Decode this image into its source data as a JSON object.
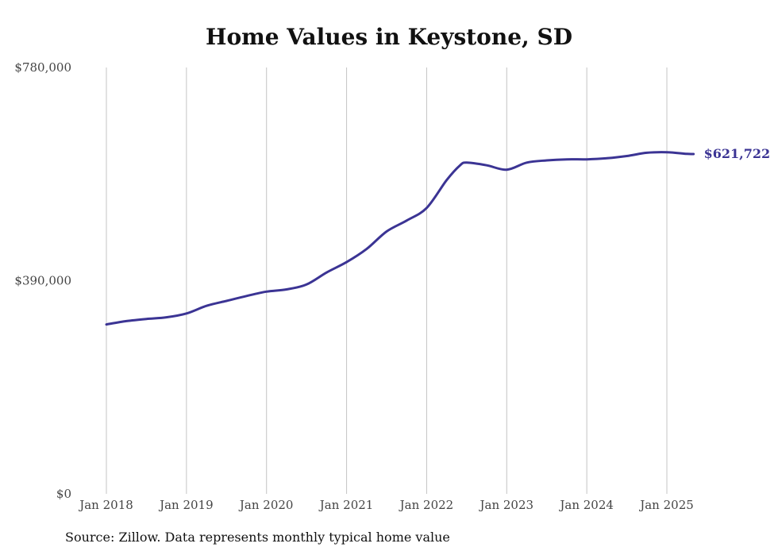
{
  "chart_data": {
    "type": "line",
    "title": "Home Values in Keystone, SD",
    "xlabel": "",
    "ylabel": "",
    "ylim": [
      0,
      780000
    ],
    "y_ticks": [
      0,
      390000,
      780000
    ],
    "y_tick_labels": [
      "$0",
      "$390,000",
      "$780,000"
    ],
    "x_ticks": [
      "2018-01",
      "2019-01",
      "2020-01",
      "2021-01",
      "2022-01",
      "2023-01",
      "2024-01",
      "2025-01"
    ],
    "x_tick_labels": [
      "Jan 2018",
      "Jan 2019",
      "Jan 2020",
      "Jan 2021",
      "Jan 2022",
      "Jan 2023",
      "Jan 2024",
      "Jan 2025"
    ],
    "grid": "vertical",
    "line_color": "#3b3494",
    "end_label": "$621,722",
    "series": [
      {
        "name": "",
        "points": [
          [
            "2018-01",
            310000
          ],
          [
            "2018-04",
            316000
          ],
          [
            "2018-07",
            320000
          ],
          [
            "2018-10",
            323000
          ],
          [
            "2019-01",
            330000
          ],
          [
            "2019-04",
            344000
          ],
          [
            "2019-07",
            353000
          ],
          [
            "2019-10",
            362000
          ],
          [
            "2020-01",
            370000
          ],
          [
            "2020-04",
            374000
          ],
          [
            "2020-07",
            383000
          ],
          [
            "2020-10",
            405000
          ],
          [
            "2021-01",
            424000
          ],
          [
            "2021-04",
            448000
          ],
          [
            "2021-07",
            480000
          ],
          [
            "2021-10",
            500000
          ],
          [
            "2022-01",
            523000
          ],
          [
            "2022-04",
            574000
          ],
          [
            "2022-06",
            601000
          ],
          [
            "2022-07",
            606000
          ],
          [
            "2022-10",
            601000
          ],
          [
            "2023-01",
            593000
          ],
          [
            "2023-04",
            606000
          ],
          [
            "2023-07",
            610000
          ],
          [
            "2023-10",
            612000
          ],
          [
            "2024-01",
            612000
          ],
          [
            "2024-04",
            614000
          ],
          [
            "2024-07",
            618000
          ],
          [
            "2024-10",
            624000
          ],
          [
            "2025-01",
            625000
          ],
          [
            "2025-04",
            622000
          ],
          [
            "2025-05",
            621722
          ]
        ]
      }
    ]
  },
  "footer": {
    "source": "Source: Zillow. Data represents monthly typical home value"
  }
}
